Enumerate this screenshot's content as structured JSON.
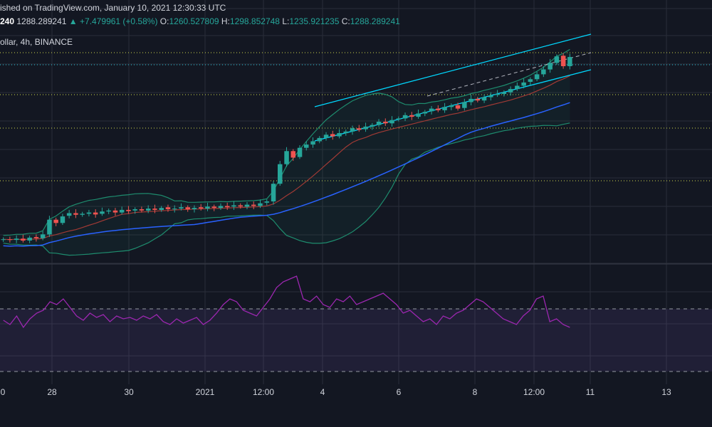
{
  "header": {
    "published": "ished on TradingView.com, January 10, 2021 12:30:33 UTC",
    "symbol_partial": "240",
    "last_price": "1288.289241",
    "change": "+7.479961 (+0.58%)",
    "o_label": "O:",
    "o_value": "1260.527809",
    "h_label": "H:",
    "h_value": "1298.852748",
    "l_label": "L:",
    "l_value": "1235.921235",
    "c_label": "C:",
    "c_value": "1288.289241",
    "up_arrow": "▲",
    "series_title": "ollar, 4h, BINANCE"
  },
  "x_axis": {
    "labels": [
      "0",
      "28",
      "30",
      "2021",
      "12:00",
      "4",
      "6",
      "8",
      "12:00",
      "11",
      "13"
    ]
  },
  "colors": {
    "background": "#131722",
    "grid": "#2a2e39",
    "up": "#26a69a",
    "down": "#ef5350",
    "channel": "#00d8ff",
    "bb": "#1e8c6e",
    "ma_blue": "#2962ff",
    "ma_red": "#a13a35",
    "rsi": "#9c27b0",
    "levels": "#cfd74a"
  },
  "chart_data": [
    {
      "type": "candlestick",
      "title": "ollar, 4h, BINANCE",
      "timeframe": "4h",
      "exchange": "BINANCE",
      "ohlc_last": {
        "open": 1260.527809,
        "high": 1298.852748,
        "low": 1235.921235,
        "close": 1288.289241
      },
      "x_labels": [
        "0",
        "28",
        "30",
        "2021",
        "12:00",
        "4",
        "6",
        "8",
        "12:00",
        "11",
        "13"
      ],
      "closes": [
        730,
        728,
        732,
        726,
        735,
        733,
        745,
        790,
        780,
        800,
        810,
        805,
        808,
        812,
        806,
        815,
        818,
        812,
        820,
        816,
        822,
        818,
        824,
        820,
        826,
        822,
        824,
        828,
        822,
        826,
        824,
        830,
        826,
        832,
        828,
        834,
        830,
        836,
        832,
        840,
        846,
        900,
        960,
        1000,
        980,
        1010,
        1020,
        1030,
        1040,
        1050,
        1045,
        1055,
        1060,
        1070,
        1065,
        1075,
        1080,
        1090,
        1085,
        1095,
        1100,
        1110,
        1105,
        1115,
        1120,
        1130,
        1125,
        1135,
        1140,
        1130,
        1150,
        1160,
        1155,
        1165,
        1170,
        1175,
        1180,
        1190,
        1200,
        1210,
        1220,
        1235,
        1250,
        1270,
        1290,
        1260,
        1288
      ],
      "overlays": [
        "bollinger_bands",
        "moving_average_blue",
        "moving_average_red",
        "rising_channel",
        "horizontal_levels"
      ],
      "grid": true
    },
    {
      "type": "line",
      "indicator": "RSI",
      "levels": [
        70,
        30
      ],
      "values": [
        55,
        52,
        58,
        50,
        56,
        60,
        62,
        68,
        66,
        70,
        64,
        58,
        55,
        60,
        57,
        59,
        54,
        58,
        56,
        57,
        55,
        58,
        56,
        59,
        54,
        52,
        56,
        53,
        55,
        57,
        52,
        55,
        60,
        66,
        70,
        68,
        62,
        60,
        58,
        64,
        70,
        78,
        82,
        84,
        86,
        70,
        68,
        72,
        66,
        64,
        70,
        68,
        72,
        66,
        68,
        70,
        72,
        74,
        70,
        66,
        60,
        62,
        58,
        54,
        56,
        52,
        58,
        56,
        60,
        62,
        66,
        70,
        68,
        64,
        60,
        56,
        54,
        52,
        58,
        62,
        70,
        72,
        54,
        56,
        52,
        50
      ]
    }
  ]
}
